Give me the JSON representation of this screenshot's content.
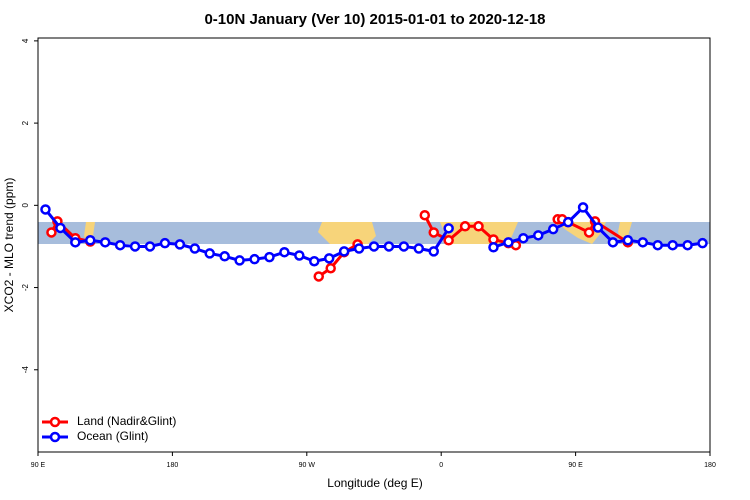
{
  "chart_data": {
    "type": "line",
    "title": "0-10N January (Ver 10)   2015-01-01 to 2020-12-18",
    "x_label": "Longitude (deg E)",
    "y_label": "XCO2 - MLO trend (ppm)",
    "xlim": [
      90,
      540
    ],
    "xticks": [
      {
        "value": 90,
        "label": "90 E"
      },
      {
        "value": 180,
        "label": "180"
      },
      {
        "value": 270,
        "label": "90 W"
      },
      {
        "value": 360,
        "label": "0"
      },
      {
        "value": 450,
        "label": "90 E"
      },
      {
        "value": 540,
        "label": "180"
      }
    ],
    "ylim": [
      -6,
      4.07
    ],
    "yticks": [
      -4,
      -2,
      0,
      2,
      4
    ],
    "legend": "bottom-left",
    "series": [
      {
        "name": "Land (Nadir&Glint)",
        "color": "#ff0000",
        "x": [
          99,
          103,
          115,
          125,
          200,
          278,
          286,
          295,
          304,
          330,
          349,
          355,
          365,
          376,
          385,
          395,
          405,
          410,
          420,
          438,
          441,
          445,
          459,
          463,
          485
        ],
        "values": [
          -0.66,
          -0.39,
          -0.8,
          -0.88,
          null,
          -1.73,
          -1.53,
          -1.14,
          -0.95,
          null,
          -0.24,
          -0.66,
          -0.85,
          -0.51,
          -0.51,
          -0.83,
          -0.92,
          -0.97,
          null,
          -0.34,
          -0.34,
          -0.41,
          -0.66,
          -0.39,
          -0.9
        ]
      },
      {
        "name": "Ocean (Glint)",
        "color": "#0000ff",
        "x": [
          95,
          105,
          115,
          125,
          135,
          145,
          155,
          165,
          175,
          185,
          195,
          205,
          215,
          225,
          235,
          245,
          255,
          265,
          275,
          285,
          295,
          305,
          315,
          325,
          335,
          345,
          355,
          365,
          380,
          395,
          405,
          415,
          425,
          435,
          445,
          455,
          465,
          475,
          485,
          495,
          505,
          515,
          525,
          535
        ],
        "values": [
          -0.1,
          -0.55,
          -0.9,
          -0.85,
          -0.9,
          -0.97,
          -1.0,
          -1.0,
          -0.92,
          -0.95,
          -1.05,
          -1.17,
          -1.24,
          -1.34,
          -1.31,
          -1.26,
          -1.14,
          -1.22,
          -1.36,
          -1.29,
          -1.12,
          -1.05,
          -1.0,
          -1.0,
          -1.0,
          -1.05,
          -1.12,
          -0.56,
          null,
          -1.02,
          -0.9,
          -0.8,
          -0.73,
          -0.58,
          -0.41,
          -0.05,
          -0.54,
          -0.9,
          -0.85,
          -0.9,
          -0.97,
          -0.97,
          -0.97,
          -0.92
        ]
      }
    ]
  }
}
